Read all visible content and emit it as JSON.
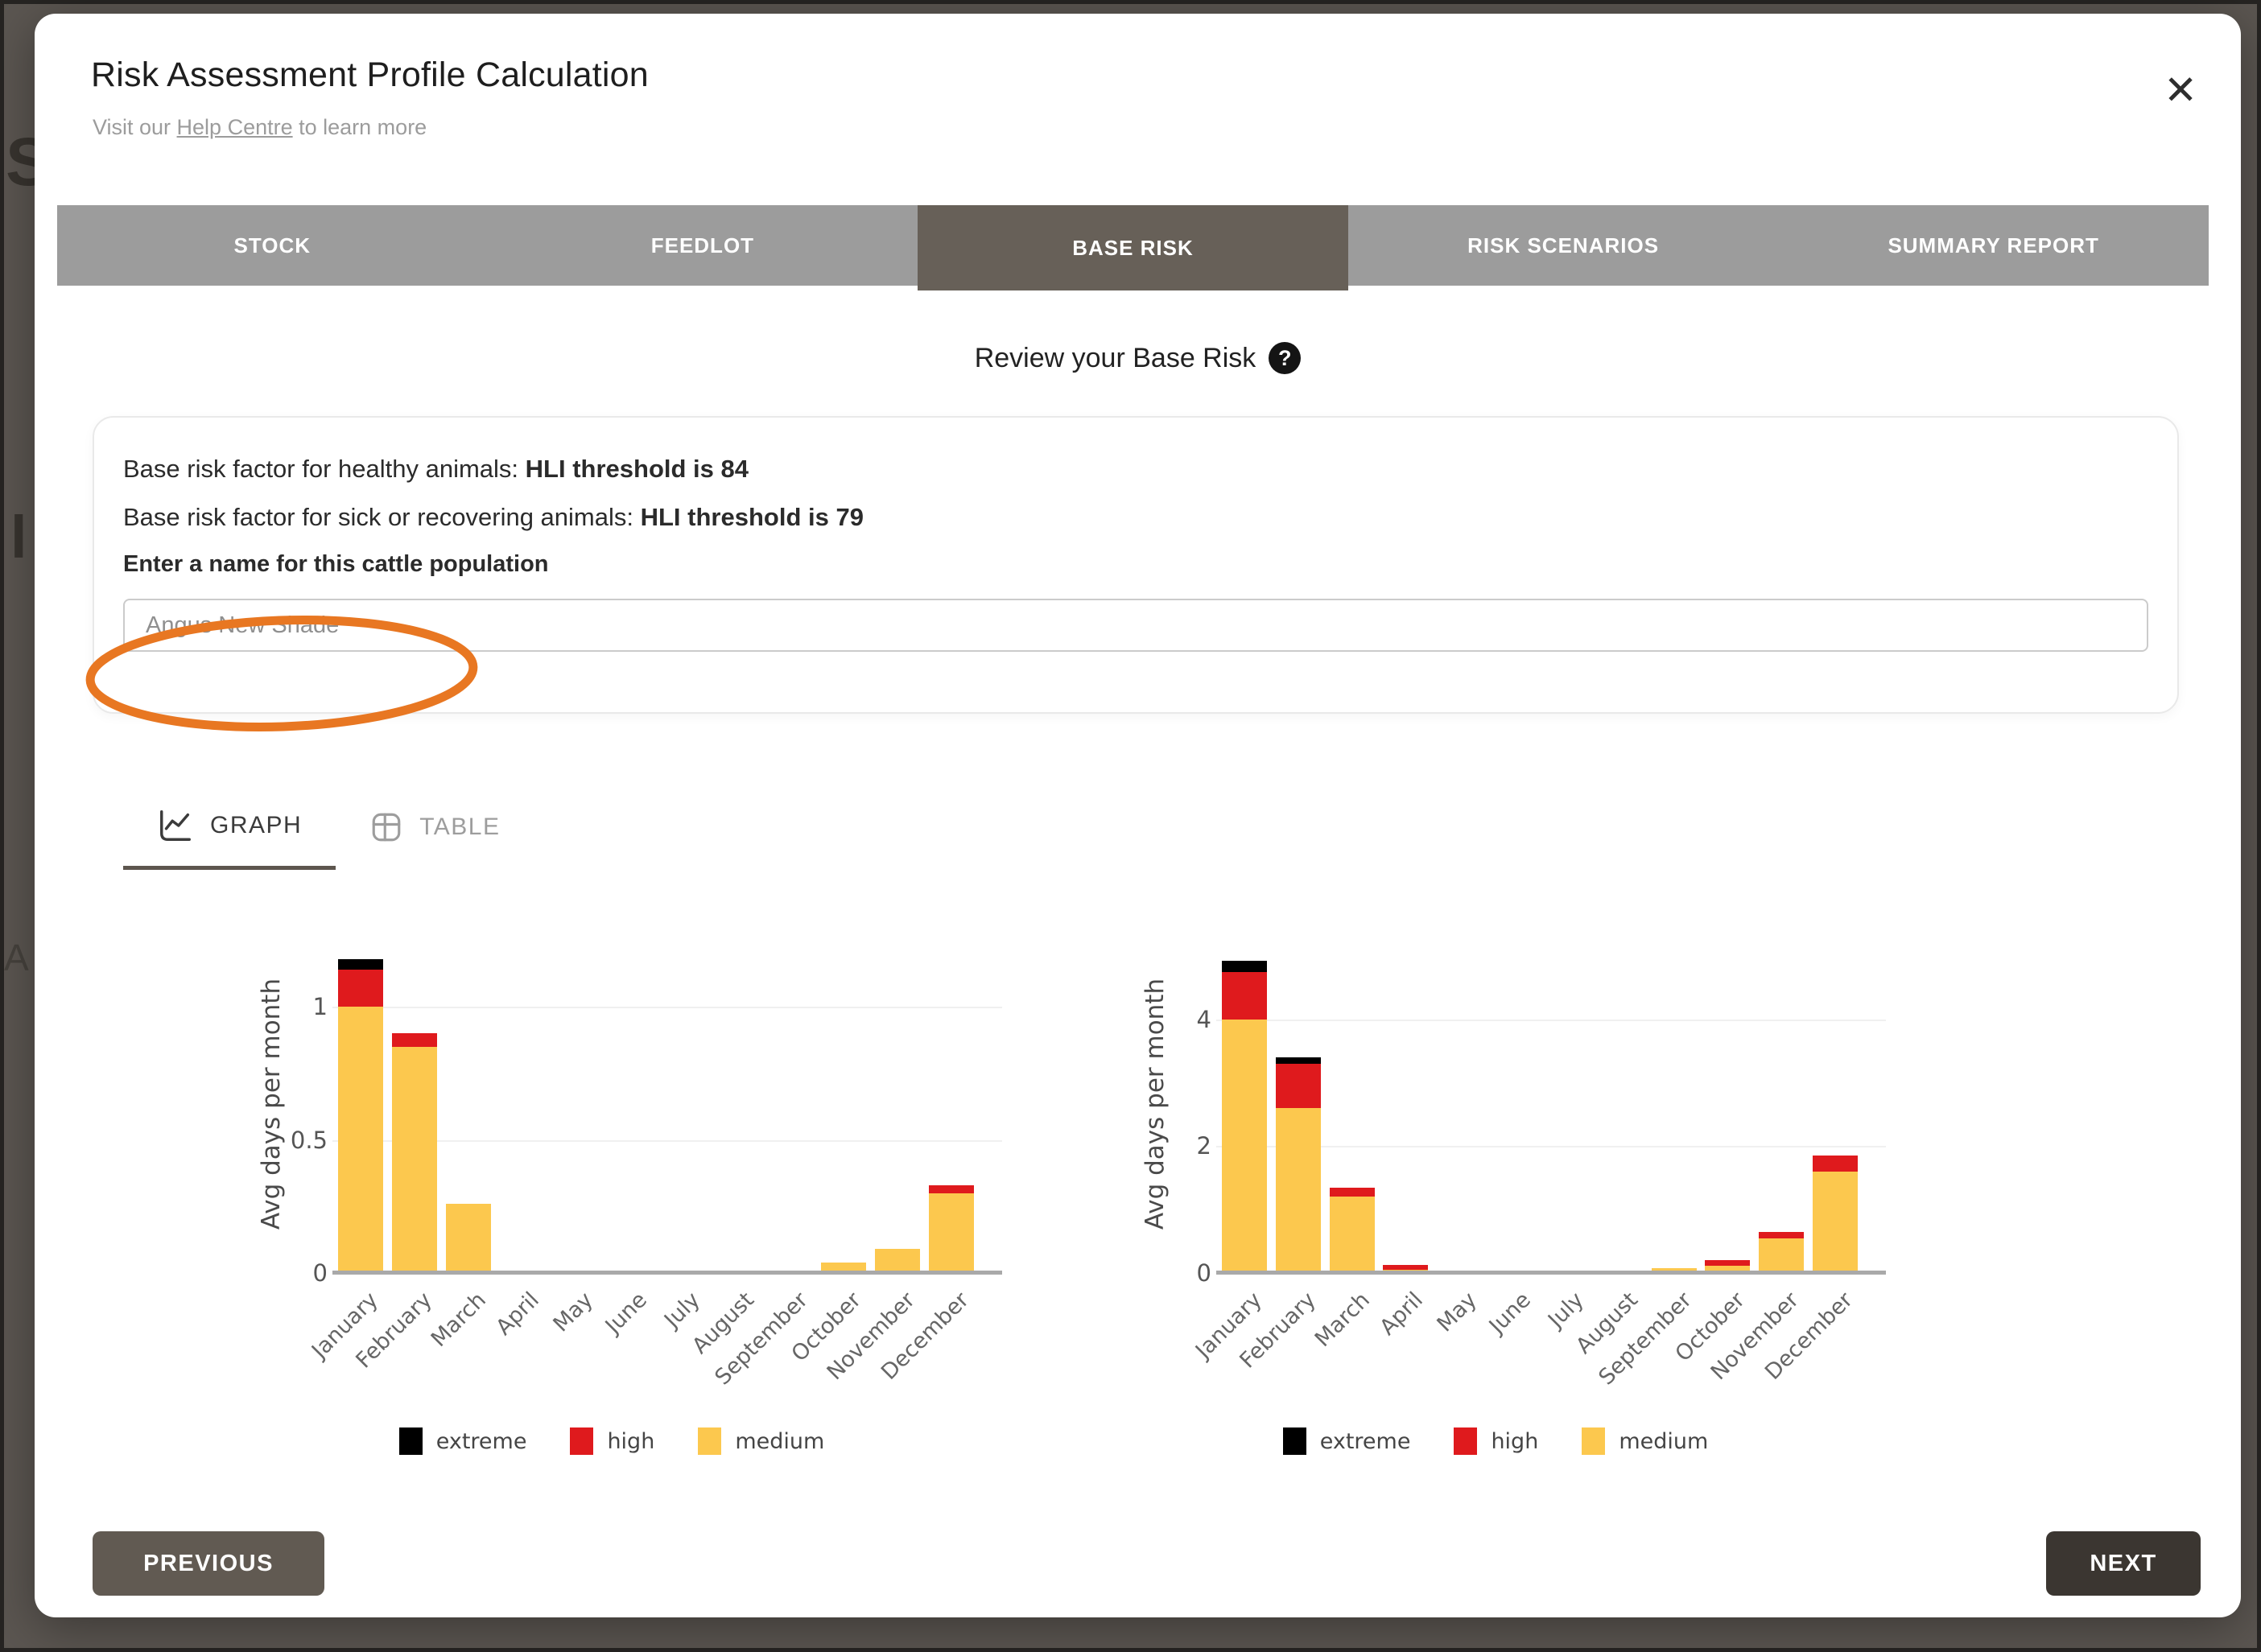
{
  "window": {
    "title": "Risk Assessment Profile Calculation",
    "subtitle_prefix": "Visit our ",
    "subtitle_link": "Help Centre",
    "subtitle_suffix": " to learn more",
    "close_glyph": "✕"
  },
  "backdrop_text": [
    "S",
    "l",
    "A"
  ],
  "tabs": [
    {
      "label": "STOCK",
      "active": false
    },
    {
      "label": "FEEDLOT",
      "active": false
    },
    {
      "label": "BASE RISK",
      "active": true
    },
    {
      "label": "RISK SCENARIOS",
      "active": false
    },
    {
      "label": "SUMMARY REPORT",
      "active": false
    }
  ],
  "review": {
    "heading": "Review your Base Risk",
    "help_glyph": "?"
  },
  "card": {
    "healthy_prefix": "Base risk factor for healthy animals: ",
    "healthy_bold": "HLI threshold is 84",
    "sick_prefix": "Base risk factor for sick or recovering animals: ",
    "sick_bold": "HLI threshold is 79",
    "name_label": "Enter a name for this cattle population",
    "name_value": "Angus New Shade"
  },
  "view_tabs": {
    "graph_label": "GRAPH",
    "table_label": "TABLE"
  },
  "footer": {
    "previous_label": "PREVIOUS",
    "next_label": "NEXT"
  },
  "colors": {
    "extreme": "#000000",
    "high": "#df1a1d",
    "medium": "#fcc84e",
    "tab_active": "#676058",
    "tab_inactive": "#9c9c9c",
    "annotation_orange": "#e87722"
  },
  "chart_data": [
    {
      "type": "bar",
      "stacked": true,
      "ylabel": "Avg days per month",
      "categories": [
        "January",
        "February",
        "March",
        "April",
        "May",
        "June",
        "July",
        "August",
        "September",
        "October",
        "November",
        "December"
      ],
      "yticks": [
        0,
        0.5,
        1
      ],
      "ylim": [
        0,
        1.27
      ],
      "series": [
        {
          "name": "medium",
          "color": "#fcc84e",
          "values": [
            1.0,
            0.85,
            0.26,
            0,
            0,
            0,
            0,
            0,
            0,
            0.04,
            0.09,
            0.3
          ]
        },
        {
          "name": "high",
          "color": "#df1a1d",
          "values": [
            0.14,
            0.05,
            0,
            0,
            0,
            0,
            0,
            0,
            0,
            0,
            0,
            0.03
          ]
        },
        {
          "name": "extreme",
          "color": "#000000",
          "values": [
            0.04,
            0,
            0,
            0,
            0,
            0,
            0,
            0,
            0,
            0,
            0,
            0
          ]
        }
      ],
      "legend": [
        "extreme",
        "high",
        "medium"
      ],
      "legend_position": "bottom"
    },
    {
      "type": "bar",
      "stacked": true,
      "ylabel": "Avg days per month",
      "categories": [
        "January",
        "February",
        "March",
        "April",
        "May",
        "June",
        "July",
        "August",
        "September",
        "October",
        "November",
        "December"
      ],
      "yticks": [
        0,
        2,
        4
      ],
      "ylim": [
        0,
        5.33
      ],
      "series": [
        {
          "name": "medium",
          "color": "#fcc84e",
          "values": [
            4.0,
            2.6,
            1.2,
            0.05,
            0,
            0,
            0,
            0,
            0.07,
            0.12,
            0.55,
            1.6
          ]
        },
        {
          "name": "high",
          "color": "#df1a1d",
          "values": [
            0.75,
            0.7,
            0.15,
            0.08,
            0,
            0,
            0,
            0,
            0,
            0.08,
            0.1,
            0.25
          ]
        },
        {
          "name": "extreme",
          "color": "#000000",
          "values": [
            0.17,
            0.1,
            0,
            0,
            0,
            0,
            0,
            0,
            0,
            0,
            0,
            0
          ]
        }
      ],
      "legend": [
        "extreme",
        "high",
        "medium"
      ],
      "legend_position": "bottom"
    }
  ]
}
